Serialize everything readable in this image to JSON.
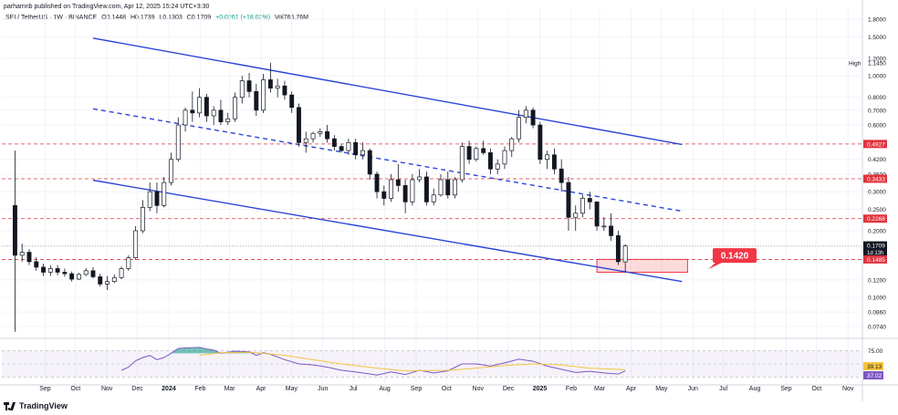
{
  "header": {
    "published": "parhamnb published on TradingView.com, Apr 12, 2025 15:24 UTC+3:30"
  },
  "symbol": {
    "title": "SEI / TetherUS · 1W · BINANCE",
    "open": "O0.1448",
    "high": "H0.1739",
    "low": "L0.1303",
    "close": "C0.1709",
    "change": "+0.0261 (+18.02%)",
    "volume": "Vol765.76M"
  },
  "brand": {
    "name": "TradingView"
  },
  "colors": {
    "up": "#089981",
    "down": "#131722",
    "channel": "#2a45d6",
    "level": "#e0343f",
    "rsi": "#7e57c2",
    "rsi_ma": "#f5c542",
    "callout": "#f23645"
  },
  "chart_data": {
    "type": "candlestick",
    "scale": "log",
    "x_ticks": [
      "Sep",
      "Oct",
      "Nov",
      "Dec",
      "2024",
      "Feb",
      "Mar",
      "Apr",
      "May",
      "Jun",
      "Jul",
      "Aug",
      "Sep",
      "Oct",
      "Nov",
      "Dec",
      "2025",
      "Feb",
      "Mar",
      "Apr",
      "May",
      "Jun",
      "Jul",
      "Aug",
      "Sep",
      "Oct",
      "Nov"
    ],
    "y_ticks": [
      "1.8000",
      "1.5000",
      "1.2000",
      "1.0000",
      "0.8000",
      "0.7000",
      "0.6000",
      "0.4200",
      "0.3600",
      "0.3000",
      "0.2500",
      "0.2000",
      "0.1700",
      "0.1200",
      "0.1000",
      "0.0860",
      "0.0740"
    ],
    "high_marker": {
      "label": "High",
      "value": "1.1450"
    },
    "price_labels": [
      {
        "value": "0.4927",
        "kind": "level"
      },
      {
        "value": "0.3433",
        "kind": "level"
      },
      {
        "value": "0.2268",
        "kind": "level"
      },
      {
        "value": "0.1709",
        "kind": "current",
        "countdown": "1d 13h"
      },
      {
        "value": "0.1485",
        "kind": "level"
      }
    ],
    "horizontal_levels": [
      0.4927,
      0.3433,
      0.2268,
      0.1485
    ],
    "current_price": 0.1709,
    "support_zone": [
      0.13,
      0.1485
    ],
    "callout": "0.1420",
    "channel": {
      "upper": {
        "from": [
          "2023-10-30",
          1.48
        ],
        "to": [
          "2025-06-02",
          0.49
        ]
      },
      "middle": {
        "from": [
          "2023-10-30",
          0.71
        ],
        "to": [
          "2025-06-02",
          0.245
        ]
      },
      "lower": {
        "from": [
          "2023-10-30",
          0.338
        ],
        "to": [
          "2025-06-02",
          0.118
        ]
      }
    },
    "candles": [
      [
        "2023-08-14",
        0.26,
        0.46,
        0.07,
        0.155
      ],
      [
        "2023-08-21",
        0.155,
        0.175,
        0.145,
        0.16
      ],
      [
        "2023-08-28",
        0.16,
        0.165,
        0.14,
        0.145
      ],
      [
        "2023-09-04",
        0.145,
        0.152,
        0.132,
        0.137
      ],
      [
        "2023-09-11",
        0.137,
        0.142,
        0.125,
        0.13
      ],
      [
        "2023-09-18",
        0.13,
        0.14,
        0.125,
        0.135
      ],
      [
        "2023-09-25",
        0.135,
        0.14,
        0.126,
        0.13
      ],
      [
        "2023-10-02",
        0.13,
        0.135,
        0.124,
        0.128
      ],
      [
        "2023-10-09",
        0.128,
        0.131,
        0.118,
        0.121
      ],
      [
        "2023-10-16",
        0.121,
        0.129,
        0.12,
        0.127
      ],
      [
        "2023-10-23",
        0.127,
        0.136,
        0.125,
        0.132
      ],
      [
        "2023-10-30",
        0.132,
        0.137,
        0.122,
        0.124
      ],
      [
        "2023-11-06",
        0.124,
        0.128,
        0.112,
        0.115
      ],
      [
        "2023-11-13",
        0.115,
        0.125,
        0.108,
        0.118
      ],
      [
        "2023-11-20",
        0.118,
        0.127,
        0.116,
        0.123
      ],
      [
        "2023-11-27",
        0.123,
        0.138,
        0.121,
        0.135
      ],
      [
        "2023-12-04",
        0.135,
        0.155,
        0.132,
        0.151
      ],
      [
        "2023-12-11",
        0.151,
        0.21,
        0.148,
        0.2
      ],
      [
        "2023-12-18",
        0.2,
        0.275,
        0.195,
        0.255
      ],
      [
        "2023-12-25",
        0.255,
        0.33,
        0.245,
        0.3
      ],
      [
        "2024-01-01",
        0.3,
        0.33,
        0.24,
        0.26
      ],
      [
        "2024-01-08",
        0.26,
        0.35,
        0.255,
        0.33
      ],
      [
        "2024-01-15",
        0.33,
        0.45,
        0.32,
        0.42
      ],
      [
        "2024-01-22",
        0.42,
        0.65,
        0.41,
        0.6
      ],
      [
        "2024-01-29",
        0.6,
        0.72,
        0.56,
        0.7
      ],
      [
        "2024-02-05",
        0.7,
        0.85,
        0.62,
        0.68
      ],
      [
        "2024-02-12",
        0.68,
        0.88,
        0.65,
        0.8
      ],
      [
        "2024-02-19",
        0.8,
        0.83,
        0.62,
        0.66
      ],
      [
        "2024-02-26",
        0.66,
        0.73,
        0.6,
        0.7
      ],
      [
        "2024-03-04",
        0.7,
        0.78,
        0.6,
        0.62
      ],
      [
        "2024-03-11",
        0.62,
        0.68,
        0.6,
        0.64
      ],
      [
        "2024-03-18",
        0.64,
        0.84,
        0.62,
        0.8
      ],
      [
        "2024-03-25",
        0.8,
        1.0,
        0.75,
        0.95
      ],
      [
        "2024-04-01",
        0.95,
        1.03,
        0.8,
        0.85
      ],
      [
        "2024-04-08",
        0.85,
        0.92,
        0.66,
        0.7
      ],
      [
        "2024-04-15",
        0.7,
        1.02,
        0.68,
        0.96
      ],
      [
        "2024-04-22",
        0.96,
        1.145,
        0.84,
        0.88
      ],
      [
        "2024-04-29",
        0.88,
        0.97,
        0.8,
        0.9
      ],
      [
        "2024-05-06",
        0.9,
        0.95,
        0.78,
        0.82
      ],
      [
        "2024-05-13",
        0.82,
        0.85,
        0.68,
        0.72
      ],
      [
        "2024-05-20",
        0.72,
        0.75,
        0.48,
        0.5
      ],
      [
        "2024-05-27",
        0.5,
        0.56,
        0.45,
        0.52
      ],
      [
        "2024-06-03",
        0.52,
        0.56,
        0.5,
        0.55
      ],
      [
        "2024-06-10",
        0.55,
        0.58,
        0.53,
        0.56
      ],
      [
        "2024-06-17",
        0.56,
        0.6,
        0.5,
        0.52
      ],
      [
        "2024-06-24",
        0.52,
        0.54,
        0.46,
        0.48
      ],
      [
        "2024-07-01",
        0.48,
        0.49,
        0.45,
        0.46
      ],
      [
        "2024-07-08",
        0.46,
        0.52,
        0.44,
        0.5
      ],
      [
        "2024-07-15",
        0.5,
        0.52,
        0.42,
        0.44
      ],
      [
        "2024-07-22",
        0.44,
        0.5,
        0.42,
        0.46
      ],
      [
        "2024-07-29",
        0.46,
        0.47,
        0.34,
        0.36
      ],
      [
        "2024-08-05",
        0.36,
        0.37,
        0.28,
        0.3
      ],
      [
        "2024-08-12",
        0.3,
        0.32,
        0.26,
        0.28
      ],
      [
        "2024-08-19",
        0.28,
        0.36,
        0.27,
        0.34
      ],
      [
        "2024-08-26",
        0.34,
        0.4,
        0.3,
        0.32
      ],
      [
        "2024-09-02",
        0.32,
        0.34,
        0.24,
        0.27
      ],
      [
        "2024-09-09",
        0.27,
        0.36,
        0.26,
        0.34
      ],
      [
        "2024-09-16",
        0.34,
        0.38,
        0.33,
        0.35
      ],
      [
        "2024-09-23",
        0.35,
        0.37,
        0.26,
        0.27
      ],
      [
        "2024-09-30",
        0.27,
        0.31,
        0.26,
        0.29
      ],
      [
        "2024-10-07",
        0.29,
        0.36,
        0.285,
        0.34
      ],
      [
        "2024-10-14",
        0.34,
        0.37,
        0.28,
        0.29
      ],
      [
        "2024-10-21",
        0.29,
        0.35,
        0.28,
        0.34
      ],
      [
        "2024-10-28",
        0.34,
        0.5,
        0.33,
        0.48
      ],
      [
        "2024-11-04",
        0.48,
        0.51,
        0.4,
        0.42
      ],
      [
        "2024-11-11",
        0.42,
        0.48,
        0.41,
        0.47
      ],
      [
        "2024-11-18",
        0.47,
        0.51,
        0.44,
        0.45
      ],
      [
        "2024-11-25",
        0.45,
        0.47,
        0.36,
        0.38
      ],
      [
        "2024-12-02",
        0.38,
        0.42,
        0.36,
        0.4
      ],
      [
        "2024-12-09",
        0.4,
        0.48,
        0.38,
        0.46
      ],
      [
        "2024-12-16",
        0.46,
        0.53,
        0.43,
        0.52
      ],
      [
        "2024-12-23",
        0.52,
        0.7,
        0.5,
        0.65
      ],
      [
        "2024-12-30",
        0.65,
        0.73,
        0.61,
        0.7
      ],
      [
        "2025-01-06",
        0.7,
        0.72,
        0.58,
        0.6
      ],
      [
        "2025-01-13",
        0.6,
        0.62,
        0.4,
        0.42
      ],
      [
        "2025-01-20",
        0.42,
        0.46,
        0.38,
        0.44
      ],
      [
        "2025-01-27",
        0.44,
        0.47,
        0.36,
        0.38
      ],
      [
        "2025-02-03",
        0.38,
        0.42,
        0.3,
        0.33
      ],
      [
        "2025-02-10",
        0.33,
        0.35,
        0.2,
        0.23
      ],
      [
        "2025-02-17",
        0.23,
        0.26,
        0.2,
        0.24
      ],
      [
        "2025-02-24",
        0.24,
        0.29,
        0.23,
        0.28
      ],
      [
        "2025-03-03",
        0.28,
        0.3,
        0.25,
        0.27
      ],
      [
        "2025-03-10",
        0.27,
        0.27,
        0.2,
        0.21
      ],
      [
        "2025-03-17",
        0.21,
        0.23,
        0.2,
        0.21
      ],
      [
        "2025-03-24",
        0.21,
        0.24,
        0.18,
        0.19
      ],
      [
        "2025-03-31",
        0.19,
        0.2,
        0.14,
        0.145
      ],
      [
        "2025-04-07",
        0.1448,
        0.1739,
        0.1303,
        0.1709
      ]
    ],
    "rsi": {
      "levels": [
        75,
        50,
        25
      ],
      "y_ticks": [
        "75.00",
        "25.00"
      ],
      "value_labels": [
        "39.13",
        "37.02"
      ],
      "rsi_points": [
        [
          "2023-11-27",
          38
        ],
        [
          "2023-12-04",
          44
        ],
        [
          "2023-12-11",
          56
        ],
        [
          "2023-12-18",
          62
        ],
        [
          "2023-12-25",
          66
        ],
        [
          "2024-01-01",
          58
        ],
        [
          "2024-01-08",
          62
        ],
        [
          "2024-01-15",
          70
        ],
        [
          "2024-01-22",
          79
        ],
        [
          "2024-01-29",
          80
        ],
        [
          "2024-02-12",
          81
        ],
        [
          "2024-02-19",
          78
        ],
        [
          "2024-02-26",
          76
        ],
        [
          "2024-03-04",
          70
        ],
        [
          "2024-03-18",
          74
        ],
        [
          "2024-04-01",
          73
        ],
        [
          "2024-04-08",
          66
        ],
        [
          "2024-04-15",
          71
        ],
        [
          "2024-04-22",
          68
        ],
        [
          "2024-05-06",
          58
        ],
        [
          "2024-05-20",
          50
        ],
        [
          "2024-06-03",
          48
        ],
        [
          "2024-06-17",
          44
        ],
        [
          "2024-07-01",
          38
        ],
        [
          "2024-07-15",
          35
        ],
        [
          "2024-08-05",
          29
        ],
        [
          "2024-08-19",
          35
        ],
        [
          "2024-09-02",
          30
        ],
        [
          "2024-09-16",
          38
        ],
        [
          "2024-09-30",
          33
        ],
        [
          "2024-10-14",
          37
        ],
        [
          "2024-10-28",
          50
        ],
        [
          "2024-11-11",
          50
        ],
        [
          "2024-11-25",
          46
        ],
        [
          "2024-12-09",
          52
        ],
        [
          "2024-12-23",
          59
        ],
        [
          "2025-01-06",
          55
        ],
        [
          "2025-01-20",
          46
        ],
        [
          "2025-02-03",
          40
        ],
        [
          "2025-02-17",
          34
        ],
        [
          "2025-03-03",
          36
        ],
        [
          "2025-03-17",
          33
        ],
        [
          "2025-03-31",
          31
        ],
        [
          "2025-04-07",
          37
        ]
      ],
      "ma_points": [
        [
          "2024-02-12",
          66
        ],
        [
          "2024-03-04",
          71
        ],
        [
          "2024-04-01",
          72
        ],
        [
          "2024-05-06",
          66
        ],
        [
          "2024-06-03",
          58
        ],
        [
          "2024-07-01",
          50
        ],
        [
          "2024-08-05",
          42
        ],
        [
          "2024-09-02",
          37
        ],
        [
          "2024-10-14",
          38
        ],
        [
          "2024-11-11",
          42
        ],
        [
          "2024-12-09",
          47
        ],
        [
          "2025-01-06",
          50
        ],
        [
          "2025-02-03",
          48
        ],
        [
          "2025-03-03",
          42
        ],
        [
          "2025-04-07",
          39
        ]
      ]
    }
  }
}
